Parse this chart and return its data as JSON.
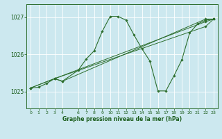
{
  "title": "",
  "xlabel": "Graphe pression niveau de la mer (hPa)",
  "bg_color": "#cce8ef",
  "grid_color": "#ffffff",
  "line_color": "#2d6e2d",
  "marker_color": "#2d6e2d",
  "axis_label_color": "#1a5c1a",
  "ylim": [
    1024.55,
    1027.35
  ],
  "xlim": [
    -0.5,
    23.5
  ],
  "yticks": [
    1025,
    1026,
    1027
  ],
  "xticks": [
    0,
    1,
    2,
    3,
    4,
    6,
    7,
    8,
    9,
    10,
    11,
    12,
    13,
    14,
    15,
    16,
    17,
    18,
    19,
    20,
    21,
    22,
    23
  ],
  "series1_x": [
    0,
    1,
    2,
    3,
    4,
    6,
    7,
    8,
    9,
    10,
    11,
    12,
    13,
    14,
    15,
    16,
    17,
    18,
    19,
    20,
    21,
    22,
    23
  ],
  "series1_y": [
    1025.1,
    1025.12,
    1025.22,
    1025.35,
    1025.28,
    1025.58,
    1025.88,
    1026.1,
    1026.62,
    1027.02,
    1027.02,
    1026.92,
    1026.52,
    1026.15,
    1025.82,
    1025.02,
    1025.02,
    1025.42,
    1025.85,
    1026.58,
    1026.82,
    1026.92,
    1026.95
  ],
  "series2_x": [
    0,
    3,
    22,
    23
  ],
  "series2_y": [
    1025.1,
    1025.35,
    1026.75,
    1026.95
  ],
  "series3_x": [
    0,
    3,
    22,
    23
  ],
  "series3_y": [
    1025.1,
    1025.35,
    1026.88,
    1026.95
  ],
  "series4_x": [
    3,
    4,
    22,
    23
  ],
  "series4_y": [
    1025.35,
    1025.28,
    1026.95,
    1026.95
  ],
  "figsize": [
    3.2,
    2.0
  ],
  "dpi": 100
}
